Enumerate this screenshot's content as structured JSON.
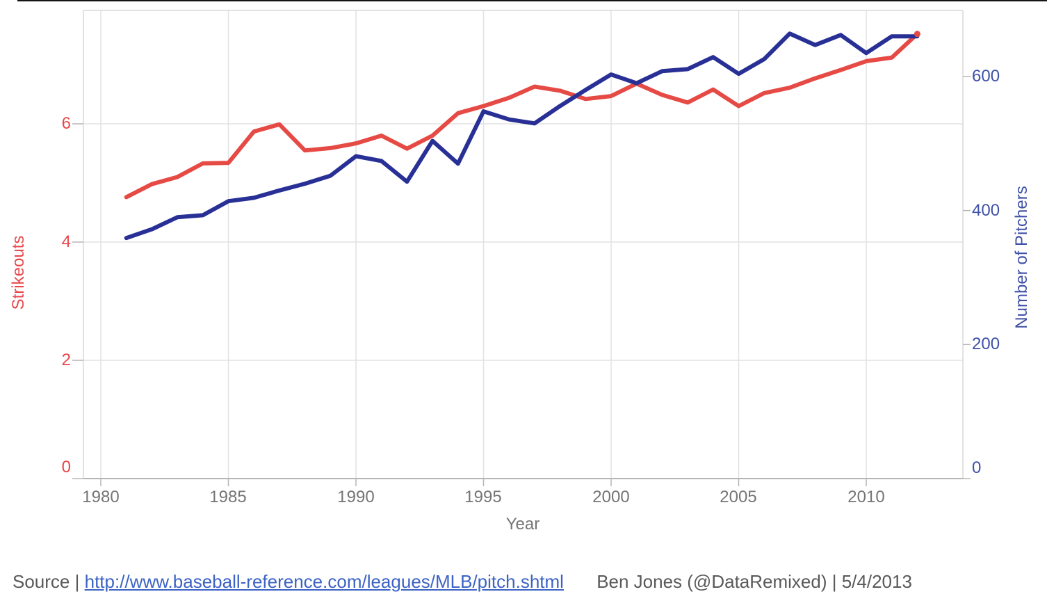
{
  "chart_data": {
    "type": "line",
    "xlabel": "Year",
    "x_ticks": [
      1980,
      1985,
      1990,
      1995,
      2000,
      2005,
      2010
    ],
    "x_range": [
      1978.6,
      2013.8
    ],
    "grid": true,
    "legend": "none (dual colored axes)",
    "left_axis": {
      "title": "Strikeouts",
      "color": "#e8474b",
      "ticks": [
        0,
        2,
        4,
        6
      ],
      "range": [
        0,
        7.92
      ]
    },
    "right_axis": {
      "title": "Number of Pitchers",
      "color": "#3f51a8",
      "ticks": [
        0,
        200,
        400,
        600
      ],
      "range": [
        0,
        698
      ]
    },
    "series": [
      {
        "id": "strikeouts",
        "name": "Strikeouts",
        "axis": "left",
        "color": "#e64a45",
        "x": [
          1981,
          1982,
          1983,
          1984,
          1985,
          1986,
          1987,
          1988,
          1989,
          1990,
          1991,
          1992,
          1993,
          1994,
          1995,
          1996,
          1997,
          1998,
          1999,
          2000,
          2001,
          2002,
          2003,
          2004,
          2005,
          2006,
          2007,
          2008,
          2009,
          2010,
          2011,
          2012
        ],
        "values": [
          4.76,
          4.98,
          5.1,
          5.33,
          5.34,
          5.87,
          5.99,
          5.55,
          5.59,
          5.67,
          5.8,
          5.58,
          5.8,
          6.18,
          6.3,
          6.44,
          6.63,
          6.56,
          6.42,
          6.47,
          6.68,
          6.49,
          6.36,
          6.58,
          6.3,
          6.52,
          6.61,
          6.77,
          6.91,
          7.06,
          7.12,
          7.52
        ]
      },
      {
        "id": "pitchers",
        "name": "Number of Pitchers",
        "axis": "right",
        "color": "#283096",
        "x": [
          1981,
          1982,
          1983,
          1984,
          1985,
          1986,
          1987,
          1988,
          1989,
          1990,
          1991,
          1992,
          1993,
          1994,
          1995,
          1996,
          1997,
          1998,
          1999,
          2000,
          2001,
          2002,
          2003,
          2004,
          2005,
          2006,
          2007,
          2008,
          2009,
          2010,
          2011,
          2012
        ],
        "values": [
          359,
          372,
          390,
          393,
          414,
          419,
          430,
          440,
          452,
          481,
          474,
          443,
          504,
          470,
          548,
          536,
          530,
          556,
          580,
          603,
          590,
          608,
          611,
          629,
          604,
          626,
          664,
          647,
          662,
          635,
          660,
          660
        ]
      }
    ]
  },
  "footer": {
    "source_label": "Source",
    "separator": "|",
    "source_url": "http://www.baseball-reference.com/leagues/MLB/pitch.shtml",
    "credit": "Ben Jones (@DataRemixed) | 5/4/2013"
  }
}
